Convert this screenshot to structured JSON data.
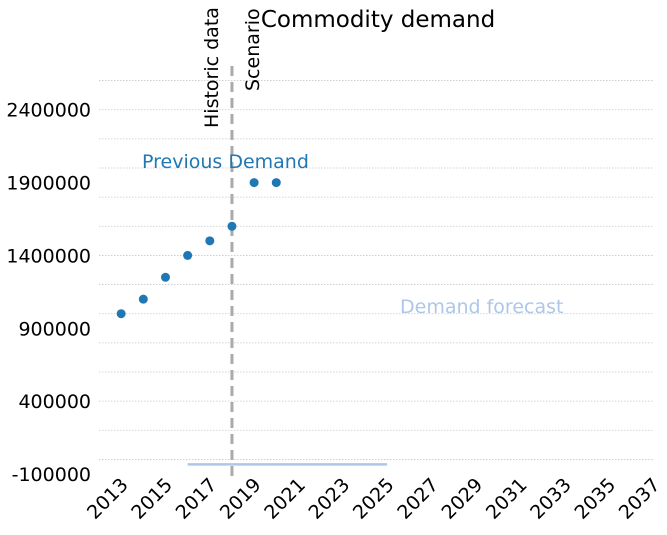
{
  "chart_data": {
    "type": "scatter",
    "title": "Commodity demand",
    "xlabel": "",
    "ylabel": "",
    "xlim": [
      2012,
      2037
    ],
    "ylim": [
      -100000,
      2700000
    ],
    "x_ticks": [
      "2013",
      "2015",
      "2017",
      "2019",
      "2021",
      "2023",
      "2025",
      "2027",
      "2029",
      "2031",
      "2033",
      "2035",
      "2037"
    ],
    "y_ticks": [
      "2400000",
      "1900000",
      "1400000",
      "900000",
      "400000",
      "-100000"
    ],
    "grid": "horizontal dotted",
    "series": [
      {
        "name": "Previous Demand",
        "color": "#1f77b4",
        "points": [
          {
            "x": 2013,
            "y": 1000000
          },
          {
            "x": 2014,
            "y": 1100000
          },
          {
            "x": 2015,
            "y": 1250000
          },
          {
            "x": 2016,
            "y": 1400000
          },
          {
            "x": 2017,
            "y": 1500000
          },
          {
            "x": 2018,
            "y": 1600000
          },
          {
            "x": 2019,
            "y": 1900000
          },
          {
            "x": 2020,
            "y": 1900000
          }
        ]
      },
      {
        "name": "Demand forecast",
        "color": "#aec7e8",
        "points": [
          {
            "x": 2016,
            "y": 0
          },
          {
            "x": 2025,
            "y": 0
          }
        ]
      }
    ],
    "annotations": {
      "divider_year": 2018,
      "historic_label": "Historic data",
      "scenario_label": "Scenario",
      "previous_label": "Previous Demand",
      "forecast_label": "Demand forecast",
      "divider_color": "#aaaaaa"
    }
  }
}
